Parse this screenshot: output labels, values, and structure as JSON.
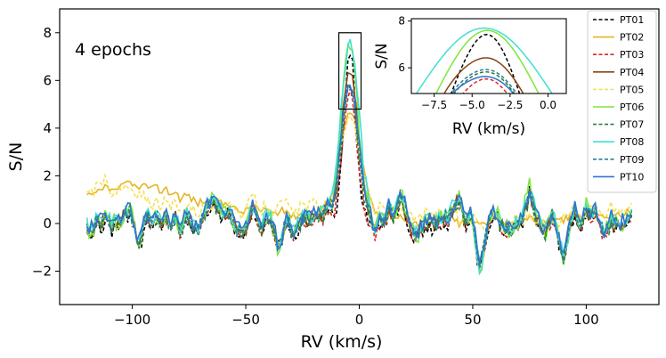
{
  "chart_data": {
    "type": "line",
    "annotation": "4 epochs",
    "xlabel": "RV (km/s)",
    "ylabel": "S/N",
    "xlim": [
      -132,
      132
    ],
    "ylim": [
      -3.4,
      9.0
    ],
    "xticks": [
      -100,
      -50,
      0,
      50,
      100
    ],
    "yticks": [
      -2,
      0,
      2,
      4,
      6,
      8
    ],
    "highlight_box": {
      "x": [
        -9,
        0.8
      ],
      "y": [
        4.8,
        8.0
      ]
    },
    "inset": {
      "xlabel": "RV (km/s)",
      "ylabel": "S/N",
      "xlim": [
        -9,
        1.2
      ],
      "ylim": [
        4.9,
        8.1
      ],
      "xticks": [
        -7.5,
        -5.0,
        -2.5,
        0.0
      ],
      "xtick_labels": [
        "−7.5",
        "−5.0",
        "−2.5",
        "0.0"
      ],
      "yticks": [
        6,
        8
      ]
    },
    "legend_position": "upper-right",
    "series": [
      {
        "name": "PT01",
        "color": "#000000",
        "dash": "dashed",
        "peak": 7.4,
        "width": 2.6,
        "offset": -0.15,
        "amp": 0.62,
        "seed": 1
      },
      {
        "name": "PT02",
        "color": "#e6b422",
        "dash": "solid",
        "peak": 4.3,
        "width": 4.8,
        "offset": 1.0,
        "amp": 0.38,
        "seed": 2
      },
      {
        "name": "PT03",
        "color": "#d62728",
        "dash": "dashed",
        "peak": 5.5,
        "width": 3.0,
        "offset": -0.1,
        "amp": 0.62,
        "seed": 3
      },
      {
        "name": "PT04",
        "color": "#8b4513",
        "dash": "solid",
        "peak": 6.4,
        "width": 3.6,
        "offset": 0.1,
        "amp": 0.6,
        "seed": 4
      },
      {
        "name": "PT05",
        "color": "#f5e050",
        "dash": "dashed",
        "peak": 3.8,
        "width": 4.2,
        "offset": 0.7,
        "amp": 0.42,
        "seed": 5
      },
      {
        "name": "PT06",
        "color": "#7ee63c",
        "dash": "solid",
        "peak": 7.6,
        "width": 3.4,
        "offset": 0.15,
        "amp": 0.72,
        "seed": 6
      },
      {
        "name": "PT07",
        "color": "#2e7d32",
        "dash": "dashed",
        "peak": 5.8,
        "width": 3.4,
        "offset": 0.0,
        "amp": 0.58,
        "seed": 7
      },
      {
        "name": "PT08",
        "color": "#40e0d0",
        "dash": "solid",
        "peak": 7.4,
        "width": 3.8,
        "offset": 0.3,
        "amp": 0.66,
        "seed": 8
      },
      {
        "name": "PT09",
        "color": "#2a7f8f",
        "dash": "dashed",
        "peak": 5.9,
        "width": 3.5,
        "offset": 0.1,
        "amp": 0.6,
        "seed": 9
      },
      {
        "name": "PT10",
        "color": "#2f74d0",
        "dash": "solid",
        "peak": 5.6,
        "width": 3.7,
        "offset": 0.3,
        "amp": 0.64,
        "seed": 10
      }
    ]
  }
}
